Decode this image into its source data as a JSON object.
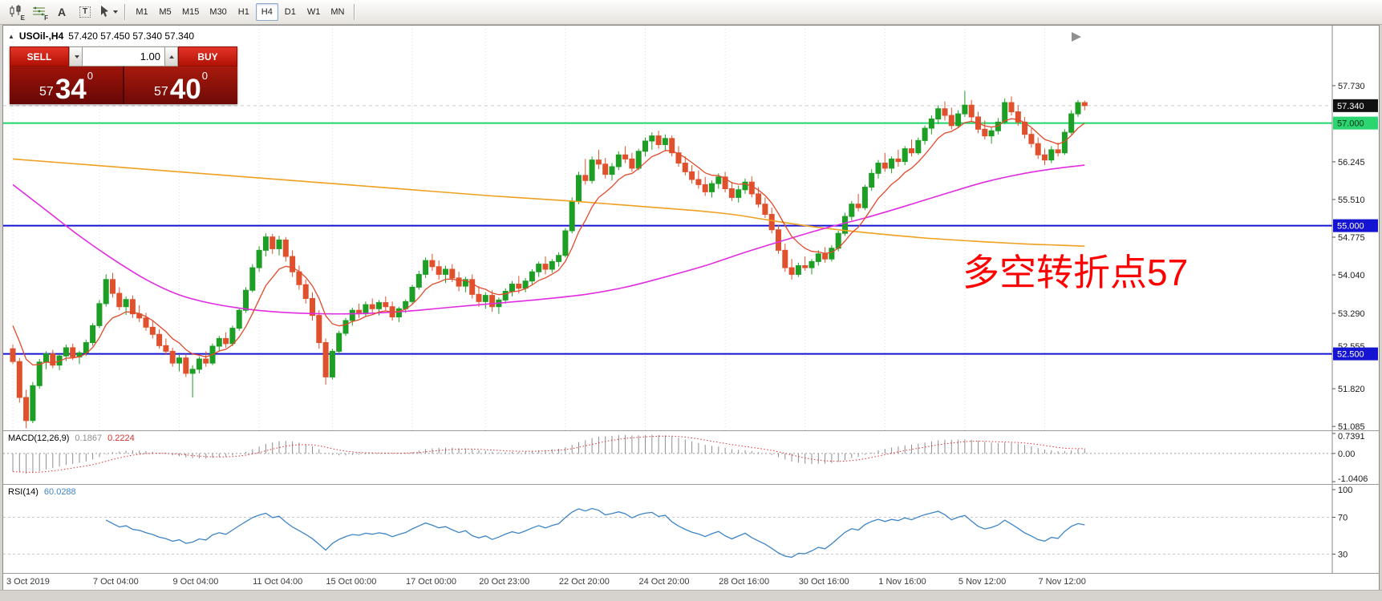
{
  "toolbar": {
    "tools": [
      {
        "name": "chart-type-tool",
        "kind": "candles",
        "badge": "E",
        "caret": false
      },
      {
        "name": "indicator-list-tool",
        "kind": "grid",
        "badge": "F",
        "caret": false
      },
      {
        "name": "text-tool",
        "kind": "letter",
        "glyph": "A",
        "badge": "",
        "caret": false
      },
      {
        "name": "label-tool",
        "kind": "boxed",
        "glyph": "T",
        "badge": "",
        "caret": false
      },
      {
        "name": "crosshair-tool",
        "kind": "cursor",
        "badge": "",
        "caret": true
      }
    ],
    "timeframes": [
      "M1",
      "M5",
      "M15",
      "M30",
      "H1",
      "H4",
      "D1",
      "W1",
      "MN"
    ],
    "active_timeframe": "H4"
  },
  "chart_header": {
    "collapse_glyph": "▲",
    "symbol": "USOil-,H4",
    "ohlc": "57.420 57.450 57.340 57.340"
  },
  "trade_panel": {
    "sell_label": "SELL",
    "buy_label": "BUY",
    "lot_value": "1.00",
    "sell_price": {
      "prefix": "57",
      "big": "34",
      "sup": "0"
    },
    "buy_price": {
      "prefix": "57",
      "big": "40",
      "sup": "0"
    }
  },
  "chart_data": {
    "type": "candlestick",
    "symbol": "USOil-",
    "timeframe": "H4",
    "up_color": "#1d9e25",
    "down_color": "#e0502c",
    "price_axis": {
      "ticks": [
        57.73,
        56.245,
        55.51,
        54.775,
        54.04,
        53.29,
        52.555,
        51.82,
        51.085
      ]
    },
    "horizontal_lines": [
      {
        "price": 57.0,
        "label": "57.000",
        "color": "#1fd46b",
        "badge_bg": "#2bd56f",
        "badge_fg": "#00331a",
        "width": 2
      },
      {
        "price": 55.0,
        "label": "55.000",
        "color": "#1414d2",
        "badge_bg": "#1414d2",
        "badge_fg": "#ffffff",
        "width": 2
      },
      {
        "price": 52.5,
        "label": "52.500",
        "color": "#1414d2",
        "badge_bg": "#1414d2",
        "badge_fg": "#ffffff",
        "width": 2
      }
    ],
    "current_price": {
      "value": 57.34,
      "label": "57.340",
      "badge_bg": "#111111",
      "badge_fg": "#ffffff"
    },
    "annotation": {
      "text": "多空转折点57",
      "color": "#ff0000"
    },
    "candles": [
      [
        52.6,
        52.68,
        52.3,
        52.35
      ],
      [
        52.35,
        52.42,
        51.55,
        51.65
      ],
      [
        51.65,
        51.8,
        51.05,
        51.2
      ],
      [
        51.2,
        51.95,
        51.15,
        51.88
      ],
      [
        51.88,
        52.4,
        51.82,
        52.34
      ],
      [
        52.34,
        52.55,
        52.2,
        52.5
      ],
      [
        52.5,
        52.58,
        52.22,
        52.28
      ],
      [
        52.28,
        52.5,
        52.18,
        52.46
      ],
      [
        52.46,
        52.68,
        52.36,
        52.62
      ],
      [
        52.62,
        52.7,
        52.38,
        52.44
      ],
      [
        52.44,
        52.56,
        52.3,
        52.52
      ],
      [
        52.52,
        52.78,
        52.46,
        52.72
      ],
      [
        52.72,
        53.1,
        52.66,
        53.05
      ],
      [
        53.05,
        53.55,
        53.0,
        53.48
      ],
      [
        53.48,
        54.05,
        53.42,
        53.95
      ],
      [
        53.95,
        54.08,
        53.6,
        53.68
      ],
      [
        53.68,
        53.8,
        53.35,
        53.42
      ],
      [
        53.42,
        53.62,
        53.26,
        53.56
      ],
      [
        53.56,
        53.64,
        53.2,
        53.28
      ],
      [
        53.28,
        53.45,
        53.12,
        53.2
      ],
      [
        53.2,
        53.3,
        52.95,
        53.02
      ],
      [
        53.02,
        53.15,
        52.8,
        52.88
      ],
      [
        52.88,
        52.98,
        52.6,
        52.66
      ],
      [
        52.66,
        52.8,
        52.48,
        52.55
      ],
      [
        52.55,
        52.62,
        52.25,
        52.32
      ],
      [
        52.32,
        52.48,
        52.16,
        52.42
      ],
      [
        52.42,
        52.5,
        52.05,
        52.12
      ],
      [
        52.12,
        52.28,
        51.65,
        52.2
      ],
      [
        52.2,
        52.45,
        52.12,
        52.4
      ],
      [
        52.4,
        52.55,
        52.25,
        52.32
      ],
      [
        52.32,
        52.7,
        52.28,
        52.65
      ],
      [
        52.65,
        52.85,
        52.55,
        52.8
      ],
      [
        52.8,
        52.92,
        52.62,
        52.7
      ],
      [
        52.7,
        53.05,
        52.65,
        53.0
      ],
      [
        53.0,
        53.4,
        52.95,
        53.35
      ],
      [
        53.35,
        53.8,
        53.3,
        53.74
      ],
      [
        53.74,
        54.25,
        53.7,
        54.18
      ],
      [
        54.18,
        54.6,
        54.1,
        54.52
      ],
      [
        54.52,
        54.85,
        54.4,
        54.78
      ],
      [
        54.78,
        54.84,
        54.45,
        54.55
      ],
      [
        54.55,
        54.8,
        54.42,
        54.72
      ],
      [
        54.72,
        54.78,
        54.3,
        54.4
      ],
      [
        54.4,
        54.52,
        54.0,
        54.1
      ],
      [
        54.1,
        54.22,
        53.75,
        53.85
      ],
      [
        53.85,
        53.95,
        53.48,
        53.58
      ],
      [
        53.58,
        53.7,
        53.15,
        53.25
      ],
      [
        53.25,
        53.35,
        52.6,
        52.72
      ],
      [
        52.72,
        52.8,
        51.9,
        52.05
      ],
      [
        52.05,
        52.6,
        52.0,
        52.55
      ],
      [
        52.55,
        52.95,
        52.5,
        52.9
      ],
      [
        52.9,
        53.2,
        52.85,
        53.15
      ],
      [
        53.15,
        53.4,
        53.05,
        53.35
      ],
      [
        53.35,
        53.48,
        53.2,
        53.28
      ],
      [
        53.28,
        53.52,
        53.22,
        53.46
      ],
      [
        53.46,
        53.58,
        53.3,
        53.38
      ],
      [
        53.38,
        53.55,
        53.25,
        53.5
      ],
      [
        53.5,
        53.62,
        53.35,
        53.42
      ],
      [
        53.42,
        53.52,
        53.15,
        53.22
      ],
      [
        53.22,
        53.42,
        53.12,
        53.38
      ],
      [
        53.38,
        53.56,
        53.3,
        53.52
      ],
      [
        53.52,
        53.85,
        53.48,
        53.8
      ],
      [
        53.8,
        54.12,
        53.75,
        54.05
      ],
      [
        54.05,
        54.38,
        53.98,
        54.32
      ],
      [
        54.32,
        54.45,
        54.12,
        54.2
      ],
      [
        54.2,
        54.32,
        53.95,
        54.05
      ],
      [
        54.05,
        54.22,
        53.88,
        54.15
      ],
      [
        54.15,
        54.25,
        53.9,
        53.98
      ],
      [
        53.98,
        54.1,
        53.72,
        53.82
      ],
      [
        53.82,
        54.0,
        53.7,
        53.95
      ],
      [
        53.95,
        54.05,
        53.58,
        53.66
      ],
      [
        53.66,
        53.82,
        53.42,
        53.52
      ],
      [
        53.52,
        53.7,
        53.38,
        53.64
      ],
      [
        53.64,
        53.74,
        53.32,
        53.42
      ],
      [
        53.42,
        53.6,
        53.28,
        53.55
      ],
      [
        53.55,
        53.78,
        53.48,
        53.72
      ],
      [
        53.72,
        53.92,
        53.62,
        53.86
      ],
      [
        53.86,
        54.02,
        53.68,
        53.78
      ],
      [
        53.78,
        53.98,
        53.7,
        53.92
      ],
      [
        53.92,
        54.15,
        53.85,
        54.1
      ],
      [
        54.1,
        54.3,
        54.0,
        54.25
      ],
      [
        54.25,
        54.4,
        54.05,
        54.15
      ],
      [
        54.15,
        54.35,
        54.08,
        54.3
      ],
      [
        54.3,
        54.48,
        54.2,
        54.42
      ],
      [
        54.42,
        54.95,
        54.38,
        54.9
      ],
      [
        54.9,
        55.55,
        54.85,
        55.48
      ],
      [
        55.48,
        56.05,
        55.42,
        55.98
      ],
      [
        55.98,
        56.3,
        55.8,
        55.88
      ],
      [
        55.88,
        56.35,
        55.82,
        56.28
      ],
      [
        56.28,
        56.48,
        56.1,
        56.2
      ],
      [
        56.2,
        56.32,
        55.92,
        56.0
      ],
      [
        56.0,
        56.22,
        55.88,
        56.15
      ],
      [
        56.15,
        56.45,
        56.08,
        56.38
      ],
      [
        56.38,
        56.55,
        56.22,
        56.3
      ],
      [
        56.3,
        56.42,
        56.05,
        56.12
      ],
      [
        56.12,
        56.5,
        56.08,
        56.45
      ],
      [
        56.45,
        56.72,
        56.35,
        56.65
      ],
      [
        56.65,
        56.82,
        56.48,
        56.75
      ],
      [
        56.75,
        56.85,
        56.5,
        56.58
      ],
      [
        56.58,
        56.78,
        56.45,
        56.7
      ],
      [
        56.7,
        56.76,
        56.35,
        56.42
      ],
      [
        56.42,
        56.55,
        56.15,
        56.22
      ],
      [
        56.22,
        56.35,
        55.98,
        56.05
      ],
      [
        56.05,
        56.18,
        55.82,
        55.9
      ],
      [
        55.9,
        56.08,
        55.72,
        55.8
      ],
      [
        55.8,
        55.95,
        55.58,
        55.66
      ],
      [
        55.66,
        55.88,
        55.55,
        55.82
      ],
      [
        55.82,
        56.02,
        55.72,
        55.95
      ],
      [
        55.95,
        56.05,
        55.65,
        55.72
      ],
      [
        55.72,
        55.85,
        55.48,
        55.55
      ],
      [
        55.55,
        55.78,
        55.45,
        55.7
      ],
      [
        55.7,
        55.92,
        55.62,
        55.85
      ],
      [
        55.85,
        55.96,
        55.55,
        55.62
      ],
      [
        55.62,
        55.75,
        55.35,
        55.42
      ],
      [
        55.42,
        55.55,
        55.15,
        55.22
      ],
      [
        55.22,
        55.35,
        54.85,
        54.92
      ],
      [
        54.92,
        55.02,
        54.45,
        54.52
      ],
      [
        54.52,
        54.65,
        54.1,
        54.18
      ],
      [
        54.18,
        54.35,
        53.95,
        54.05
      ],
      [
        54.05,
        54.28,
        54.0,
        54.22
      ],
      [
        54.22,
        54.4,
        54.12,
        54.18
      ],
      [
        54.18,
        54.35,
        54.05,
        54.3
      ],
      [
        54.3,
        54.52,
        54.22,
        54.45
      ],
      [
        54.45,
        54.58,
        54.28,
        54.35
      ],
      [
        54.35,
        54.62,
        54.3,
        54.56
      ],
      [
        54.56,
        54.9,
        54.5,
        54.85
      ],
      [
        54.85,
        55.25,
        54.8,
        55.18
      ],
      [
        55.18,
        55.48,
        55.1,
        55.42
      ],
      [
        55.42,
        55.62,
        55.28,
        55.35
      ],
      [
        55.35,
        55.8,
        55.3,
        55.75
      ],
      [
        55.75,
        56.1,
        55.68,
        56.02
      ],
      [
        56.02,
        56.28,
        55.92,
        56.22
      ],
      [
        56.22,
        56.42,
        56.05,
        56.12
      ],
      [
        56.12,
        56.35,
        56.02,
        56.3
      ],
      [
        56.3,
        56.48,
        56.15,
        56.25
      ],
      [
        56.25,
        56.55,
        56.18,
        56.5
      ],
      [
        56.5,
        56.68,
        56.35,
        56.42
      ],
      [
        56.42,
        56.72,
        56.38,
        56.66
      ],
      [
        56.66,
        56.95,
        56.58,
        56.9
      ],
      [
        56.9,
        57.15,
        56.78,
        57.08
      ],
      [
        57.08,
        57.35,
        56.98,
        57.28
      ],
      [
        57.28,
        57.42,
        57.05,
        57.15
      ],
      [
        57.15,
        57.3,
        56.88,
        56.95
      ],
      [
        56.95,
        57.25,
        56.9,
        57.18
      ],
      [
        57.18,
        57.63,
        57.12,
        57.35
      ],
      [
        57.35,
        57.45,
        57.02,
        57.12
      ],
      [
        57.12,
        57.22,
        56.8,
        56.88
      ],
      [
        56.88,
        57.05,
        56.68,
        56.75
      ],
      [
        56.75,
        56.92,
        56.6,
        56.85
      ],
      [
        56.85,
        57.1,
        56.78,
        57.02
      ],
      [
        57.02,
        57.48,
        56.98,
        57.4
      ],
      [
        57.4,
        57.52,
        57.15,
        57.22
      ],
      [
        57.22,
        57.35,
        56.95,
        57.02
      ],
      [
        57.02,
        57.12,
        56.7,
        56.78
      ],
      [
        56.78,
        56.9,
        56.52,
        56.6
      ],
      [
        56.6,
        56.72,
        56.3,
        56.38
      ],
      [
        56.38,
        56.5,
        56.18,
        56.28
      ],
      [
        56.28,
        56.55,
        56.22,
        56.48
      ],
      [
        56.48,
        56.62,
        56.35,
        56.42
      ],
      [
        56.42,
        56.88,
        56.38,
        56.82
      ],
      [
        56.82,
        57.25,
        56.78,
        57.18
      ],
      [
        57.18,
        57.45,
        57.12,
        57.4
      ],
      [
        57.4,
        57.44,
        57.25,
        57.34
      ]
    ],
    "ma_lines": [
      {
        "name": "ma-slow",
        "color": "#efa020",
        "width": 1.6,
        "points": [
          [
            0,
            56.3
          ],
          [
            12,
            56.18
          ],
          [
            24,
            56.06
          ],
          [
            36,
            55.94
          ],
          [
            48,
            55.82
          ],
          [
            60,
            55.7
          ],
          [
            72,
            55.58
          ],
          [
            84,
            55.48
          ],
          [
            94,
            55.38
          ],
          [
            102,
            55.3
          ],
          [
            108,
            55.22
          ],
          [
            113,
            55.12
          ],
          [
            118,
            55.02
          ],
          [
            124,
            54.92
          ],
          [
            130,
            54.84
          ],
          [
            137,
            54.76
          ],
          [
            144,
            54.7
          ],
          [
            151,
            54.65
          ],
          [
            157,
            54.62
          ],
          [
            161,
            54.6
          ]
        ]
      },
      {
        "name": "ma-mid",
        "color": "#e22ce2",
        "width": 1.6,
        "points": [
          [
            0,
            55.8
          ],
          [
            5,
            55.3
          ],
          [
            10,
            54.8
          ],
          [
            15,
            54.35
          ],
          [
            20,
            53.95
          ],
          [
            25,
            53.65
          ],
          [
            30,
            53.48
          ],
          [
            36,
            53.36
          ],
          [
            42,
            53.3
          ],
          [
            50,
            53.28
          ],
          [
            58,
            53.32
          ],
          [
            65,
            53.4
          ],
          [
            72,
            53.48
          ],
          [
            79,
            53.56
          ],
          [
            86,
            53.66
          ],
          [
            92,
            53.8
          ],
          [
            98,
            54.0
          ],
          [
            104,
            54.22
          ],
          [
            110,
            54.48
          ],
          [
            116,
            54.72
          ],
          [
            122,
            54.95
          ],
          [
            128,
            55.15
          ],
          [
            134,
            55.38
          ],
          [
            140,
            55.62
          ],
          [
            146,
            55.85
          ],
          [
            152,
            56.02
          ],
          [
            157,
            56.12
          ],
          [
            161,
            56.18
          ]
        ]
      },
      {
        "name": "ma-fast",
        "color": "#e24a2c",
        "width": 1.3,
        "type": "ema",
        "period": 8,
        "seed_offset": 0.9
      }
    ],
    "time_labels": [
      [
        "3 Oct 2019",
        0
      ],
      [
        "7 Oct 04:00",
        13
      ],
      [
        "9 Oct 04:00",
        25
      ],
      [
        "11 Oct 04:00",
        37
      ],
      [
        "15 Oct 00:00",
        48
      ],
      [
        "17 Oct 00:00",
        60
      ],
      [
        "20 Oct 23:00",
        71
      ],
      [
        "22 Oct 20:00",
        83
      ],
      [
        "24 Oct 20:00",
        95
      ],
      [
        "28 Oct 16:00",
        107
      ],
      [
        "30 Oct 16:00",
        119
      ],
      [
        "1 Nov 16:00",
        131
      ],
      [
        "5 Nov 12:00",
        143
      ],
      [
        "7 Nov 12:00",
        155
      ]
    ],
    "indicators": {
      "macd": {
        "title": "MACD(12,26,9)",
        "values": [
          "0.1867",
          "0.2224"
        ],
        "params": {
          "fast": 12,
          "slow": 26,
          "signal": 9
        },
        "scale_values": [
          0.7391,
          0.0,
          -1.0406
        ],
        "scale_labels": [
          "0.7391",
          "0.00",
          "-1.0406"
        ],
        "histogram_color": "#8e8e8e",
        "signal_color": "#e03030"
      },
      "rsi": {
        "title": "RSI(14)",
        "value": "60.0288",
        "period": 14,
        "levels": [
          100,
          70,
          30
        ],
        "line_color": "#3d85c8"
      }
    }
  }
}
